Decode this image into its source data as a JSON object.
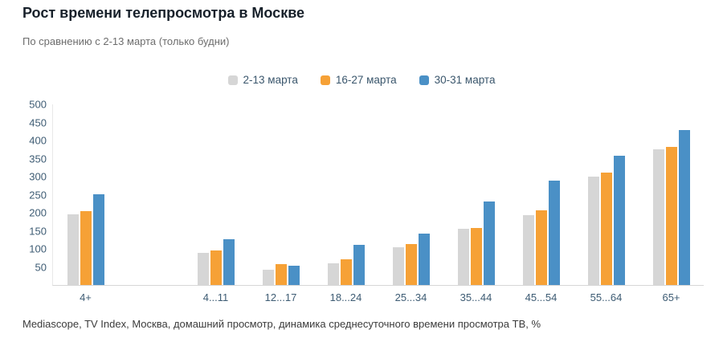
{
  "page": {
    "title": "Рост времени телепросмотра в Москве",
    "subtitle": "По сравнению с 2-13 марта (только будни)",
    "footer": "Mediascope, TV Index, Москва, домашний просмотр, динамика среднесуточного времени просмотра ТВ, %"
  },
  "chart_data": {
    "type": "bar",
    "title": "Рост времени телепросмотра в Москве",
    "subtitle": "По сравнению с 2-13 марта (только будни)",
    "categories": [
      "4+",
      "4...11",
      "12...17",
      "18...24",
      "25...34",
      "35...44",
      "45...54",
      "55...64",
      "65+"
    ],
    "series": [
      {
        "name": "2-13 марта",
        "color": "#d6d6d6",
        "values": [
          195,
          88,
          42,
          60,
          105,
          155,
          193,
          300,
          376
        ]
      },
      {
        "name": "16-27 марта",
        "color": "#f6a136",
        "values": [
          204,
          96,
          58,
          70,
          113,
          158,
          206,
          311,
          383
        ]
      },
      {
        "name": "30-31 марта",
        "color": "#4a90c6",
        "values": [
          250,
          127,
          53,
          110,
          143,
          230,
          288,
          357,
          428
        ]
      }
    ],
    "xlabel": "",
    "ylabel": "",
    "ylim": [
      0,
      500
    ],
    "yticks": [
      500,
      450,
      400,
      350,
      300,
      250,
      200,
      150,
      100,
      50
    ],
    "grid": false,
    "legend_position": "top",
    "gap_after_first_category": true
  }
}
